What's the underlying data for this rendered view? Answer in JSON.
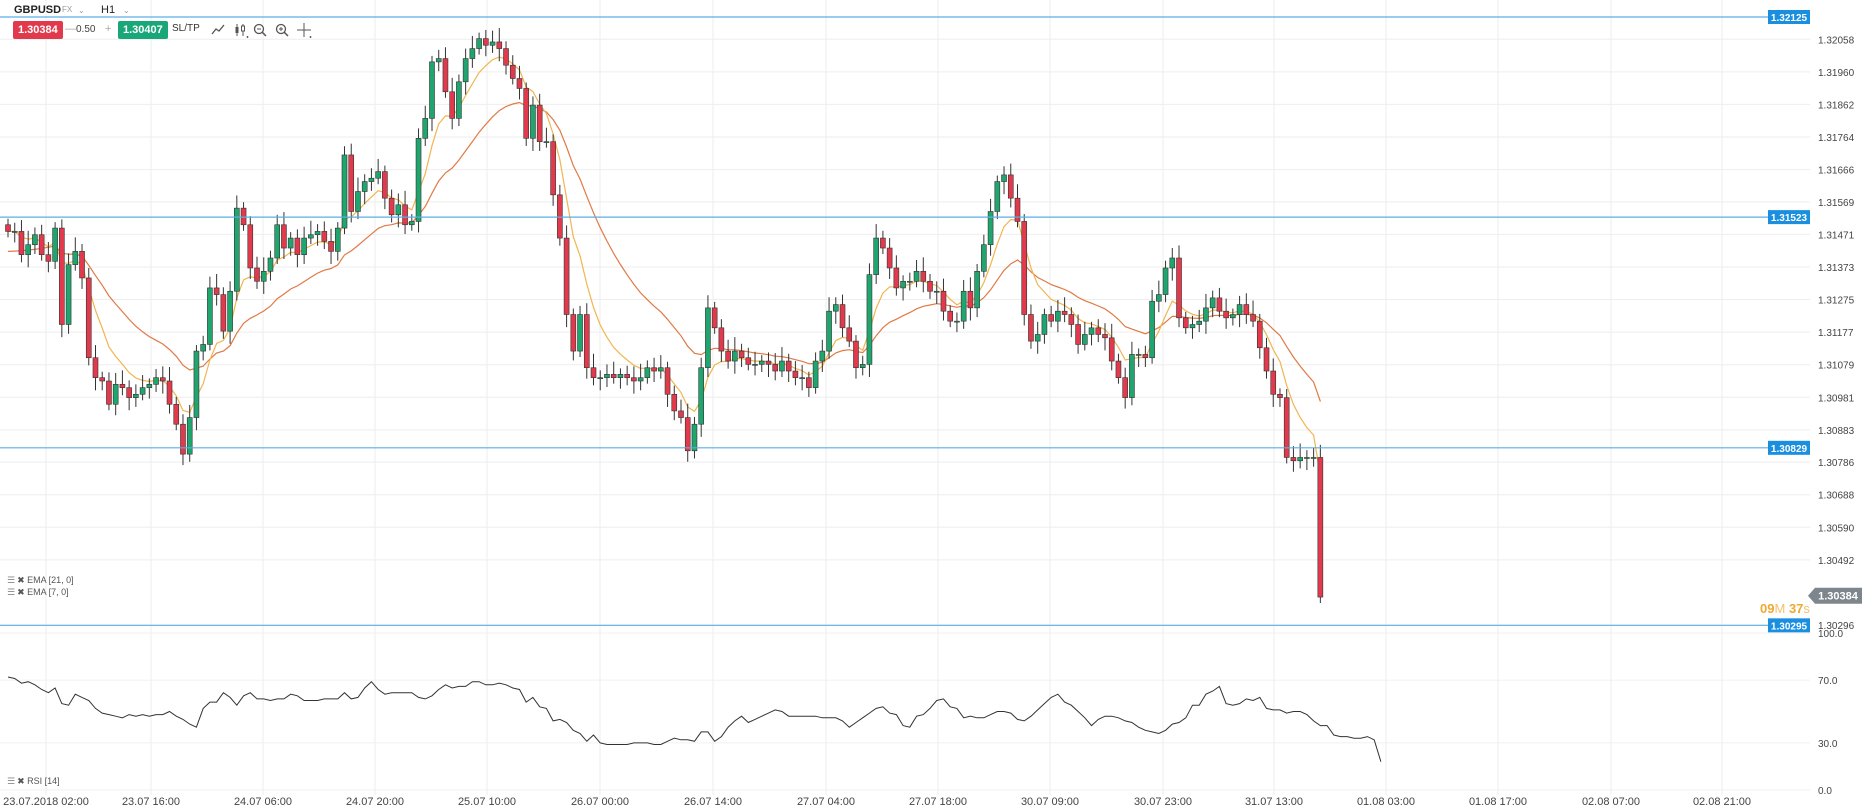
{
  "toolbar": {
    "symbol": "GBPUSD",
    "symbol_type": "FX",
    "timeframe": "H1",
    "sell_price": "1.30384",
    "quantity": "0.50",
    "buy_price": "1.30407",
    "sltp_label": "SL/TP",
    "minus": "—",
    "plus": "+"
  },
  "legend": {
    "ema21": "EMA [21, 0]",
    "ema7": "EMA [7, 0]",
    "rsi": "RSI [14]"
  },
  "countdown": {
    "minutes": "09",
    "m": "M",
    "seconds": "37",
    "s": "s"
  },
  "colors": {
    "up": "#1fa56d",
    "down": "#e03a4c",
    "ema7": "#f0b550",
    "ema21": "#e07a45",
    "hline": "#5aaee6",
    "label_bg": "#1a8fe0",
    "current_label": "#7d868d"
  },
  "chart_data": {
    "type": "candlestick",
    "x_ticks": [
      "23.07.2018 02:00",
      "23.07 16:00",
      "24.07 06:00",
      "24.07 20:00",
      "25.07 10:00",
      "26.07 00:00",
      "26.07 14:00",
      "27.07 04:00",
      "27.07 18:00",
      "30.07 09:00",
      "30.07 23:00",
      "31.07 13:00",
      "01.08 03:00",
      "01.08 17:00",
      "02.08 07:00",
      "02.08 21:00"
    ],
    "y_ticks": [
      "1.32058",
      "1.31960",
      "1.31862",
      "1.31764",
      "1.31666",
      "1.31569",
      "1.31471",
      "1.31373",
      "1.31275",
      "1.31177",
      "1.31079",
      "1.30981",
      "1.30883",
      "1.30786",
      "1.30688",
      "1.30590",
      "1.30492",
      "1.30296"
    ],
    "ylim": [
      1.30296,
      1.32125
    ],
    "horizontal_lines": [
      {
        "value": 1.32125,
        "label": "1.32125"
      },
      {
        "value": 1.31523,
        "label": "1.31523"
      },
      {
        "value": 1.30829,
        "label": "1.30829"
      },
      {
        "value": 1.30295,
        "label": "1.30295"
      }
    ],
    "current_price": {
      "value": 1.30384,
      "label": "1.30384"
    },
    "closes": [
      1.3148,
      1.3148,
      1.3141,
      1.3144,
      1.3147,
      1.3141,
      1.3139,
      1.3149,
      1.312,
      1.3138,
      1.3142,
      1.3134,
      1.311,
      1.3104,
      1.3103,
      1.3096,
      1.3102,
      1.3101,
      1.3098,
      1.3099,
      1.3101,
      1.3102,
      1.3104,
      1.3103,
      1.3096,
      1.309,
      1.3081,
      1.3092,
      1.3112,
      1.3114,
      1.3131,
      1.3129,
      1.3118,
      1.313,
      1.3155,
      1.315,
      1.3137,
      1.3133,
      1.3136,
      1.314,
      1.315,
      1.3143,
      1.3146,
      1.3141,
      1.3146,
      1.3147,
      1.3148,
      1.3145,
      1.3142,
      1.3149,
      1.3171,
      1.3154,
      1.316,
      1.3163,
      1.3164,
      1.3166,
      1.3158,
      1.3153,
      1.3156,
      1.315,
      1.3151,
      1.3176,
      1.3182,
      1.3199,
      1.32,
      1.319,
      1.3182,
      1.3193,
      1.32,
      1.3203,
      1.3206,
      1.3204,
      1.3205,
      1.3203,
      1.3198,
      1.3194,
      1.3191,
      1.3176,
      1.3186,
      1.3175,
      1.3175,
      1.3159,
      1.3146,
      1.3123,
      1.3112,
      1.3123,
      1.3107,
      1.3104,
      1.3104,
      1.3105,
      1.3104,
      1.3105,
      1.3104,
      1.3103,
      1.3104,
      1.3107,
      1.3106,
      1.3107,
      1.3099,
      1.3094,
      1.3092,
      1.3082,
      1.309,
      1.3107,
      1.3125,
      1.3119,
      1.3112,
      1.3109,
      1.3112,
      1.311,
      1.3108,
      1.3108,
      1.3109,
      1.3108,
      1.3106,
      1.3109,
      1.3106,
      1.3104,
      1.3104,
      1.3101,
      1.3109,
      1.3112,
      1.3124,
      1.3126,
      1.3119,
      1.3115,
      1.3107,
      1.3108,
      1.3135,
      1.3146,
      1.3143,
      1.3137,
      1.3131,
      1.3133,
      1.3133,
      1.3136,
      1.3133,
      1.313,
      1.313,
      1.3124,
      1.3121,
      1.3121,
      1.313,
      1.3125,
      1.3136,
      1.3144,
      1.3154,
      1.3163,
      1.3165,
      1.3158,
      1.3151,
      1.3123,
      1.3115,
      1.3117,
      1.3123,
      1.3121,
      1.3124,
      1.3123,
      1.312,
      1.3114,
      1.3117,
      1.3119,
      1.3117,
      1.3116,
      1.3109,
      1.3104,
      1.3098,
      1.3111,
      1.3111,
      1.311,
      1.3127,
      1.3129,
      1.3137,
      1.314,
      1.3122,
      1.3119,
      1.312,
      1.3121,
      1.3125,
      1.3128,
      1.3124,
      1.3122,
      1.3123,
      1.3126,
      1.3123,
      1.3121,
      1.3113,
      1.3106,
      1.3099,
      1.3098,
      1.308,
      1.3079,
      1.308,
      1.308,
      1.308,
      1.3038
    ],
    "rsi": {
      "ylim": [
        0,
        100
      ],
      "y_ticks": [
        "100.0",
        "70.0",
        "30.0",
        "0.0"
      ],
      "values": [
        72,
        71,
        68,
        69,
        67,
        64,
        62,
        65,
        55,
        54,
        61,
        59,
        57,
        52,
        49,
        48,
        47,
        46,
        48,
        47,
        48,
        47,
        48,
        48,
        50,
        47,
        45,
        42,
        40,
        52,
        56,
        56,
        62,
        59,
        54,
        60,
        62,
        58,
        58,
        57,
        58,
        58,
        61,
        60,
        57,
        57,
        57,
        58,
        58,
        58,
        62,
        58,
        59,
        65,
        69,
        64,
        61,
        62,
        62,
        62,
        62,
        59,
        58,
        60,
        64,
        67,
        65,
        66,
        66,
        69,
        69,
        67,
        67,
        68,
        67,
        65,
        64,
        56,
        59,
        53,
        52,
        44,
        45,
        43,
        38,
        36,
        31,
        35,
        30,
        29,
        29,
        29,
        29,
        30,
        30,
        30,
        29,
        29,
        31,
        33,
        32,
        32,
        31,
        37,
        37,
        31,
        34,
        40,
        44,
        47,
        43,
        45,
        47,
        49,
        51,
        50,
        47,
        47,
        47,
        47,
        47,
        46,
        46,
        46,
        44,
        40,
        43,
        46,
        49,
        52,
        53,
        49,
        48,
        41,
        40,
        47,
        48,
        52,
        57,
        58,
        53,
        52,
        46,
        47,
        46,
        46,
        48,
        50,
        50,
        49,
        45,
        44,
        47,
        51,
        55,
        59,
        61,
        56,
        54,
        50,
        46,
        41,
        45,
        47,
        47,
        46,
        44,
        43,
        40,
        38,
        37,
        36,
        38,
        42,
        43,
        46,
        54,
        54,
        61,
        63,
        66,
        55,
        54,
        55,
        58,
        57,
        59,
        52,
        51,
        51,
        49,
        50,
        50,
        48,
        44,
        41,
        41,
        35,
        34,
        34,
        33,
        33,
        34,
        32,
        18
      ]
    }
  }
}
